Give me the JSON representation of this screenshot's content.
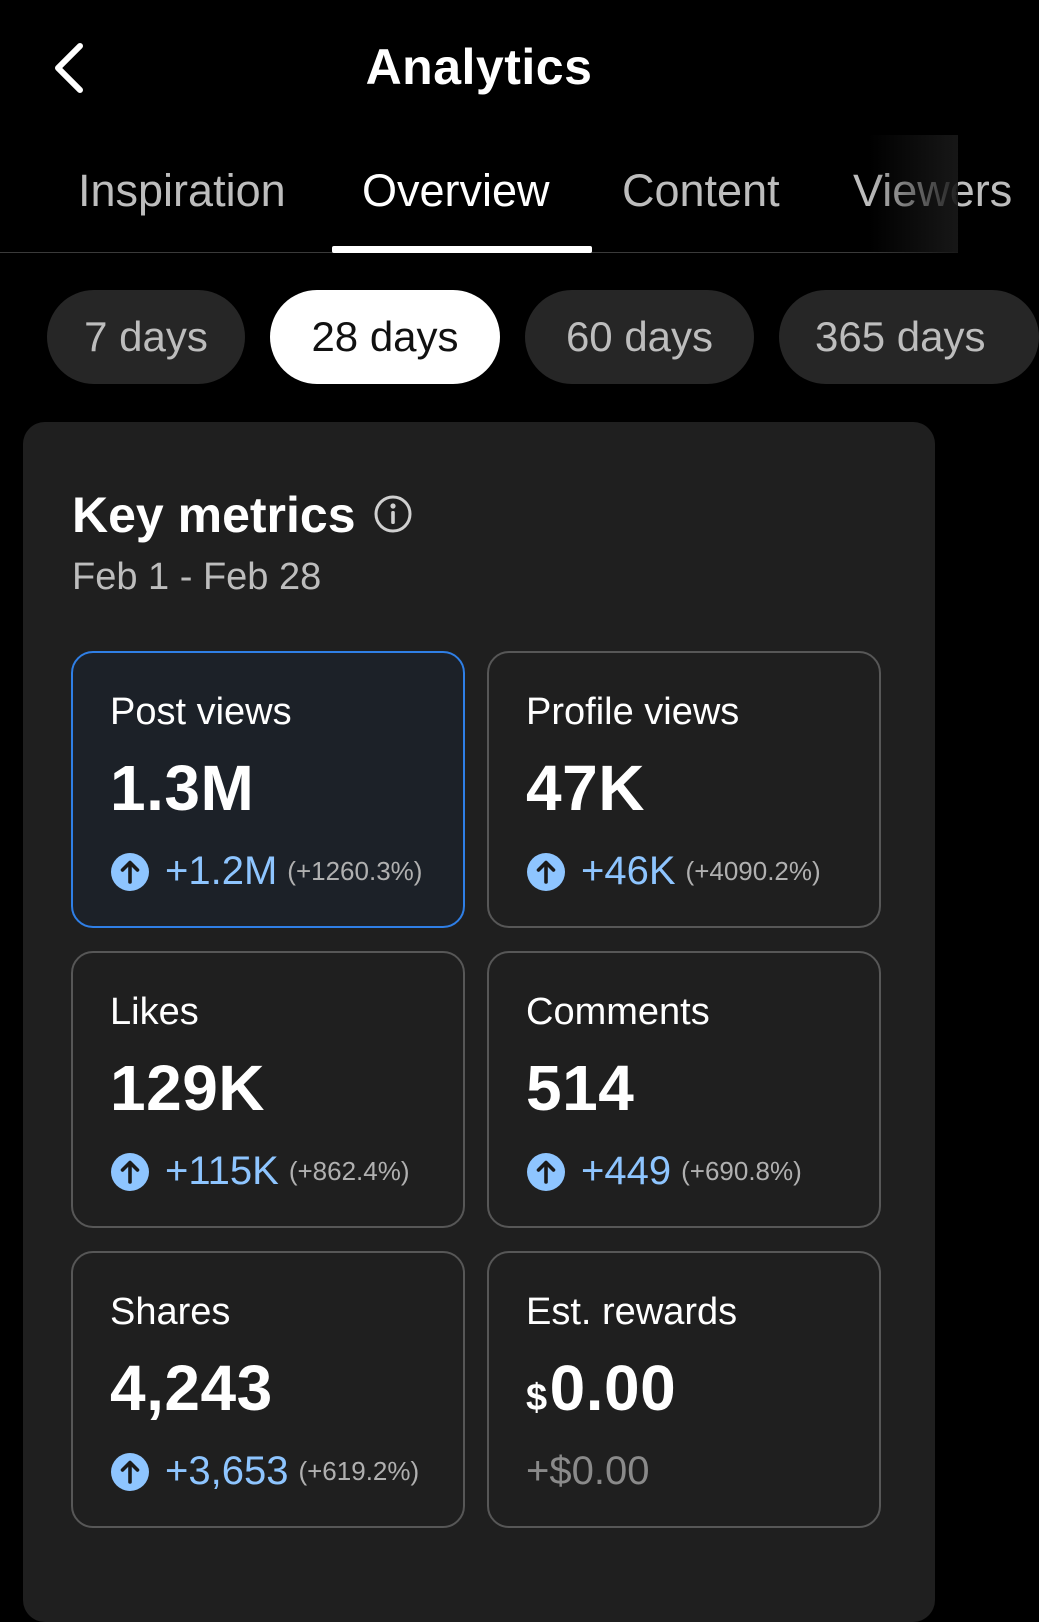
{
  "header": {
    "title": "Analytics"
  },
  "tabs": [
    {
      "label": "Inspiration",
      "active": false
    },
    {
      "label": "Overview",
      "active": true
    },
    {
      "label": "Content",
      "active": false
    },
    {
      "label": "Viewers",
      "active": false
    }
  ],
  "periods": [
    {
      "label": "7 days",
      "active": false
    },
    {
      "label": "28 days",
      "active": true
    },
    {
      "label": "60 days",
      "active": false
    },
    {
      "label": "365 days",
      "active": false
    }
  ],
  "key_metrics": {
    "title": "Key metrics",
    "date_range": "Feb 1 - Feb 28",
    "metrics": [
      {
        "label": "Post views",
        "value": "1.3M",
        "delta": "+1.2M",
        "delta_pct": "(+1260.3%)",
        "selected": true
      },
      {
        "label": "Profile views",
        "value": "47K",
        "delta": "+46K",
        "delta_pct": "(+4090.2%)"
      },
      {
        "label": "Likes",
        "value": "129K",
        "delta": "+115K",
        "delta_pct": "(+862.4%)"
      },
      {
        "label": "Comments",
        "value": "514",
        "delta": "+449",
        "delta_pct": "(+690.8%)"
      },
      {
        "label": "Shares",
        "value": "4,243",
        "delta": "+3,653",
        "delta_pct": "(+619.2%)"
      },
      {
        "label": "Est. rewards",
        "currency": "$",
        "value": "0.00",
        "delta": "+$0.00"
      }
    ]
  },
  "colors": {
    "accent_blue": "#2f7fe6",
    "positive_delta": "#8ec5ff",
    "card_bg": "#1f1f1f",
    "chip_bg": "#262626"
  },
  "icons": {
    "back": "chevron-left-icon",
    "info": "info-circle-icon",
    "trend": "arrow-up-circle-icon"
  }
}
